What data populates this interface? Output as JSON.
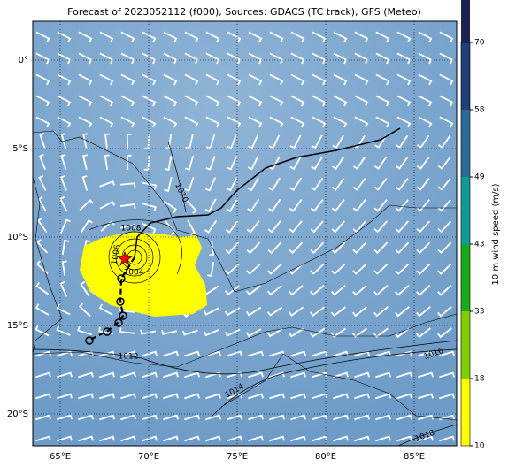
{
  "title": "Forecast of 2023052112 (f000), Sources: GDACS (TC track), GFS (Meteo)",
  "map": {
    "lat_labels": [
      "0°",
      "5°S",
      "10°S",
      "15°S",
      "20°S"
    ],
    "lon_labels": [
      "65°E",
      "70°E",
      "75°E",
      "80°E",
      "85°E"
    ],
    "isobar_labels": [
      "1010",
      "1008",
      "1006",
      "1004",
      "1012",
      "1014",
      "1016",
      "1018"
    ]
  },
  "colorbar": {
    "label": "10 m wind speed (m/s)",
    "ticks": [
      "10",
      "18",
      "33",
      "43",
      "49",
      "58",
      "70"
    ],
    "colors": [
      "#ffff00",
      "#7fd000",
      "#1aa91a",
      "#0e9a9a",
      "#2b6b9a",
      "#203e78",
      "#1c2350"
    ],
    "extend_color": "#ff0000"
  }
}
